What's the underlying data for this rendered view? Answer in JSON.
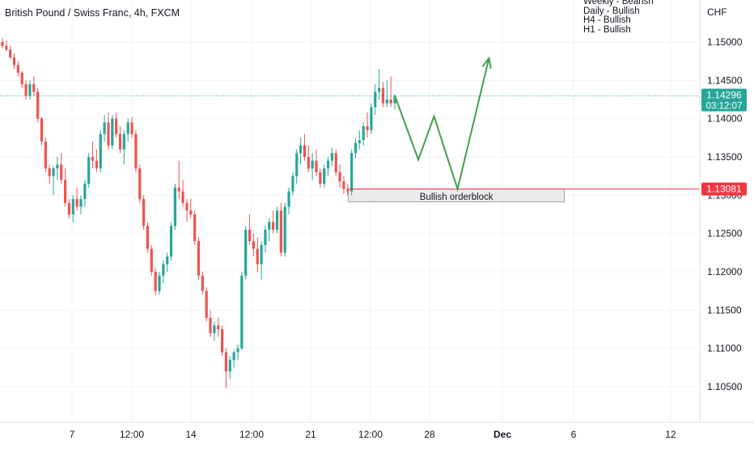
{
  "chart_data": {
    "type": "candlestick",
    "title": "British Pound / Swiss Franc, 4h, FXCM",
    "currency": "CHF",
    "notes": [
      "Weekly - Bearish",
      "Daily - Bullish",
      "H4 - Bullish",
      "H1 - Bullish"
    ],
    "ylim": [
      1.1025,
      1.1555
    ],
    "y_ticks": [
      "1.15000",
      "1.14500",
      "1.14000",
      "1.13500",
      "1.13000",
      "1.12500",
      "1.12000",
      "1.11500",
      "1.11000",
      "1.10500"
    ],
    "x_ticks": [
      "7",
      "12:00",
      "14",
      "12:00",
      "21",
      "12:00",
      "28",
      "Dec",
      "6",
      "12"
    ],
    "grid": true,
    "candles": [
      [
        1.15,
        1.1505,
        1.1492,
        1.1495
      ],
      [
        1.1495,
        1.1502,
        1.1488,
        1.149
      ],
      [
        1.149,
        1.1495,
        1.1478,
        1.148
      ],
      [
        1.148,
        1.1485,
        1.1465,
        1.147
      ],
      [
        1.147,
        1.1475,
        1.1455,
        1.146
      ],
      [
        1.146,
        1.1462,
        1.144,
        1.1445
      ],
      [
        1.1445,
        1.145,
        1.1425,
        1.143
      ],
      [
        1.143,
        1.145,
        1.1425,
        1.1445
      ],
      [
        1.1445,
        1.1455,
        1.143,
        1.1435
      ],
      [
        1.1435,
        1.144,
        1.1395,
        1.14
      ],
      [
        1.14,
        1.1402,
        1.1365,
        1.137
      ],
      [
        1.137,
        1.1375,
        1.133,
        1.1335
      ],
      [
        1.1335,
        1.134,
        1.1315,
        1.1325
      ],
      [
        1.1325,
        1.1338,
        1.13,
        1.1335
      ],
      [
        1.1335,
        1.135,
        1.132,
        1.134
      ],
      [
        1.134,
        1.1355,
        1.1315,
        1.132
      ],
      [
        1.132,
        1.1335,
        1.1285,
        1.129
      ],
      [
        1.129,
        1.1295,
        1.127,
        1.1275
      ],
      [
        1.1275,
        1.13,
        1.1265,
        1.1295
      ],
      [
        1.1295,
        1.131,
        1.128,
        1.1285
      ],
      [
        1.1285,
        1.13,
        1.1275,
        1.1295
      ],
      [
        1.1295,
        1.132,
        1.1285,
        1.1315
      ],
      [
        1.1315,
        1.1355,
        1.131,
        1.135
      ],
      [
        1.135,
        1.137,
        1.1335,
        1.1345
      ],
      [
        1.1345,
        1.136,
        1.133,
        1.1335
      ],
      [
        1.1335,
        1.1385,
        1.133,
        1.138
      ],
      [
        1.138,
        1.1405,
        1.137,
        1.1395
      ],
      [
        1.1395,
        1.1408,
        1.136,
        1.1365
      ],
      [
        1.1365,
        1.1405,
        1.136,
        1.14
      ],
      [
        1.14,
        1.1408,
        1.1375,
        1.138
      ],
      [
        1.138,
        1.139,
        1.1355,
        1.136
      ],
      [
        1.136,
        1.1385,
        1.134,
        1.138
      ],
      [
        1.138,
        1.14,
        1.137,
        1.1395
      ],
      [
        1.1395,
        1.1402,
        1.1375,
        1.138
      ],
      [
        1.138,
        1.1385,
        1.133,
        1.1335
      ],
      [
        1.1335,
        1.134,
        1.129,
        1.1295
      ],
      [
        1.1295,
        1.13,
        1.1255,
        1.126
      ],
      [
        1.126,
        1.1265,
        1.1225,
        1.123
      ],
      [
        1.123,
        1.1235,
        1.1195,
        1.12
      ],
      [
        1.12,
        1.1205,
        1.117,
        1.1175
      ],
      [
        1.1175,
        1.12,
        1.117,
        1.1195
      ],
      [
        1.1195,
        1.1215,
        1.1185,
        1.121
      ],
      [
        1.121,
        1.1225,
        1.12,
        1.122
      ],
      [
        1.122,
        1.1265,
        1.1215,
        1.126
      ],
      [
        1.126,
        1.1315,
        1.1255,
        1.131
      ],
      [
        1.131,
        1.1345,
        1.1295,
        1.1305
      ],
      [
        1.1305,
        1.132,
        1.1285,
        1.129
      ],
      [
        1.129,
        1.1295,
        1.1265,
        1.128
      ],
      [
        1.128,
        1.1295,
        1.127,
        1.1275
      ],
      [
        1.1275,
        1.128,
        1.1235,
        1.124
      ],
      [
        1.124,
        1.1245,
        1.119,
        1.1195
      ],
      [
        1.1195,
        1.12,
        1.117,
        1.1175
      ],
      [
        1.1175,
        1.118,
        1.1135,
        1.114
      ],
      [
        1.114,
        1.115,
        1.1115,
        1.112
      ],
      [
        1.112,
        1.1135,
        1.111,
        1.113
      ],
      [
        1.113,
        1.114,
        1.1115,
        1.1125
      ],
      [
        1.1125,
        1.113,
        1.109,
        1.1095
      ],
      [
        1.1095,
        1.11,
        1.1048,
        1.107
      ],
      [
        1.107,
        1.109,
        1.106,
        1.1085
      ],
      [
        1.1085,
        1.1098,
        1.1075,
        1.1095
      ],
      [
        1.1095,
        1.1105,
        1.1085,
        1.11
      ],
      [
        1.11,
        1.12,
        1.1098,
        1.1195
      ],
      [
        1.1195,
        1.126,
        1.119,
        1.1255
      ],
      [
        1.1255,
        1.1275,
        1.1235,
        1.124
      ],
      [
        1.124,
        1.125,
        1.122,
        1.123
      ],
      [
        1.123,
        1.1245,
        1.12,
        1.121
      ],
      [
        1.121,
        1.124,
        1.119,
        1.1235
      ],
      [
        1.1235,
        1.126,
        1.1225,
        1.1255
      ],
      [
        1.1255,
        1.127,
        1.124,
        1.1265
      ],
      [
        1.1265,
        1.128,
        1.125,
        1.1255
      ],
      [
        1.1255,
        1.1285,
        1.125,
        1.128
      ],
      [
        1.128,
        1.129,
        1.122,
        1.1225
      ],
      [
        1.1225,
        1.129,
        1.122,
        1.1285
      ],
      [
        1.1285,
        1.131,
        1.1275,
        1.1305
      ],
      [
        1.1305,
        1.133,
        1.13,
        1.1325
      ],
      [
        1.1325,
        1.136,
        1.1315,
        1.1355
      ],
      [
        1.1355,
        1.1375,
        1.134,
        1.1365
      ],
      [
        1.1365,
        1.138,
        1.1345,
        1.135
      ],
      [
        1.135,
        1.1365,
        1.133,
        1.1335
      ],
      [
        1.1335,
        1.1355,
        1.132,
        1.1345
      ],
      [
        1.1345,
        1.136,
        1.1325,
        1.133
      ],
      [
        1.133,
        1.1335,
        1.131,
        1.1315
      ],
      [
        1.1315,
        1.134,
        1.131,
        1.1335
      ],
      [
        1.1335,
        1.135,
        1.1325,
        1.1345
      ],
      [
        1.1345,
        1.1362,
        1.1338,
        1.1355
      ],
      [
        1.1355,
        1.136,
        1.1325,
        1.133
      ],
      [
        1.133,
        1.134,
        1.131,
        1.1318
      ],
      [
        1.1318,
        1.1325,
        1.1302,
        1.1308
      ],
      [
        1.1308,
        1.1315,
        1.13,
        1.1305
      ],
      [
        1.1305,
        1.136,
        1.13,
        1.1355
      ],
      [
        1.1355,
        1.1375,
        1.1348,
        1.1368
      ],
      [
        1.1368,
        1.1385,
        1.136,
        1.1372
      ],
      [
        1.1372,
        1.1395,
        1.1365,
        1.139
      ],
      [
        1.139,
        1.1408,
        1.1375,
        1.1385
      ],
      [
        1.1385,
        1.142,
        1.138,
        1.1415
      ],
      [
        1.1415,
        1.1445,
        1.1405,
        1.1435
      ],
      [
        1.1435,
        1.1465,
        1.1425,
        1.144
      ],
      [
        1.144,
        1.1448,
        1.1415,
        1.142
      ],
      [
        1.142,
        1.145,
        1.1415,
        1.1425
      ],
      [
        1.1425,
        1.1455,
        1.1415,
        1.142
      ],
      [
        1.142,
        1.1432,
        1.1412,
        1.1429
      ]
    ],
    "last_price": {
      "value": 1.14296,
      "label": "1.14296",
      "countdown": "03:12:07",
      "color": "#26a69a"
    },
    "horizontal_line": {
      "value": 1.13081,
      "label": "1.13081",
      "color": "#f23645"
    },
    "zone": {
      "label": "Bullish orderblock",
      "y_top": 1.13081,
      "y_bottom": 1.12915,
      "start_index": 89,
      "end_candles_after_last": 42
    },
    "projection": [
      [
        100,
        1.143
      ],
      [
        106,
        1.13465
      ],
      [
        110,
        1.1403
      ],
      [
        116,
        1.13081
      ],
      [
        124,
        1.1479
      ]
    ],
    "colors": {
      "up": "#26a69a",
      "down": "#ef5350",
      "projection": "#43a047",
      "grid": "#f0f3fa",
      "text": "#131722"
    }
  }
}
